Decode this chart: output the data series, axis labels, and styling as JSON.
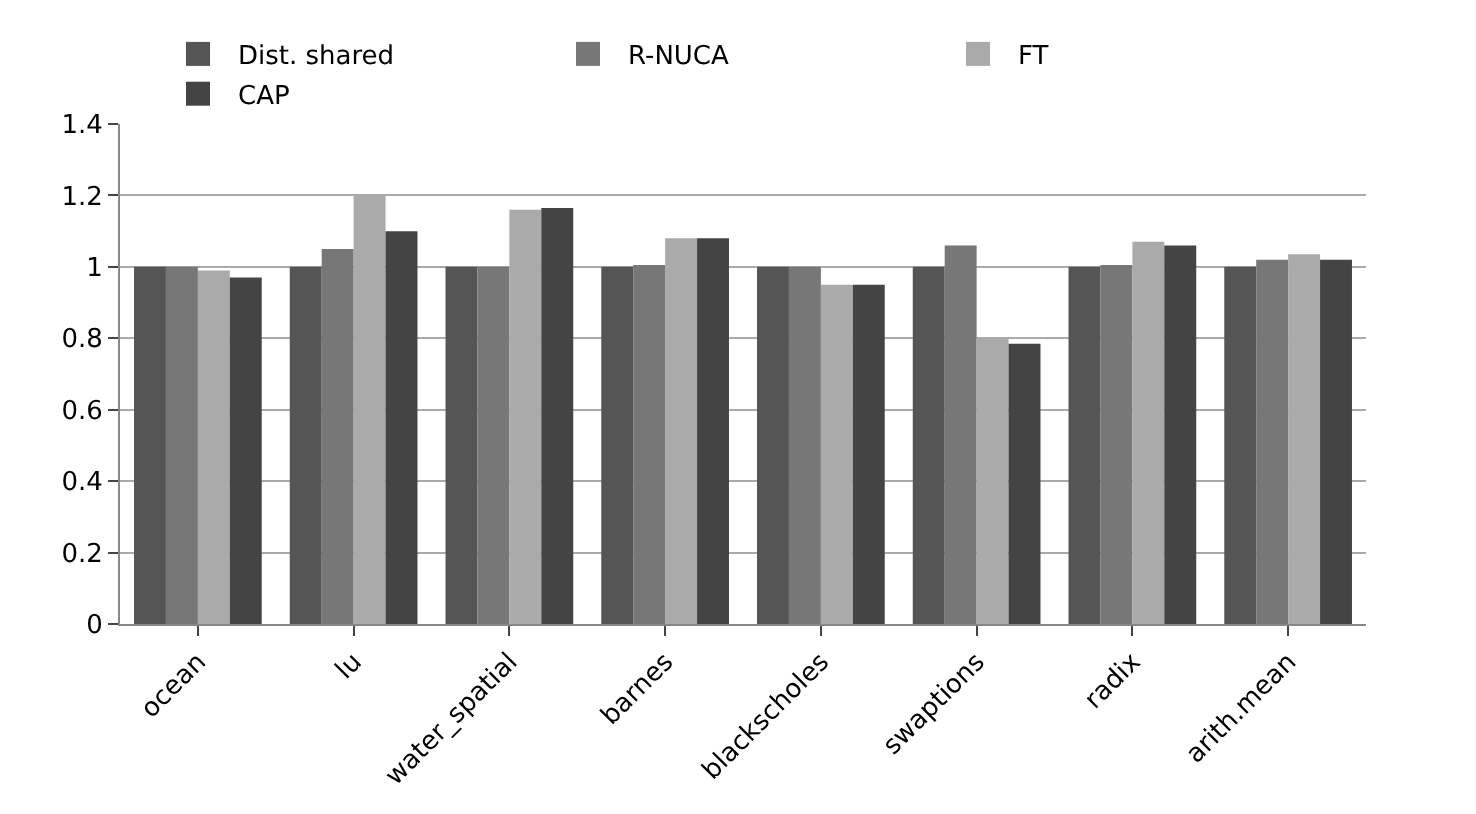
{
  "chart_data": {
    "type": "bar",
    "categories": [
      "ocean",
      "lu",
      "water_spatial",
      "barnes",
      "blackscholes",
      "swaptions",
      "radix",
      "arith.mean"
    ],
    "series": [
      {
        "name": "Dist. shared",
        "color": "#555555",
        "values": [
          1,
          1,
          1,
          1,
          1,
          1,
          1,
          1
        ]
      },
      {
        "name": "R-NUCA",
        "color": "#777777",
        "values": [
          1.0,
          1.05,
          1.0,
          1.005,
          1.0,
          1.06,
          1.005,
          1.02
        ]
      },
      {
        "name": "FT",
        "color": "#aaaaaa",
        "values": [
          0.99,
          1.2,
          1.16,
          1.08,
          0.95,
          0.8,
          1.07,
          1.035
        ]
      },
      {
        "name": "CAP",
        "color": "#444444",
        "values": [
          0.97,
          1.1,
          1.165,
          1.08,
          0.95,
          0.785,
          1.06,
          1.02
        ]
      }
    ],
    "ylim": [
      0,
      1.4
    ],
    "yticks": [
      0,
      0.2,
      0.4,
      0.6,
      0.8,
      1,
      1.2,
      1.4
    ],
    "grid": "y",
    "legend": "top"
  }
}
